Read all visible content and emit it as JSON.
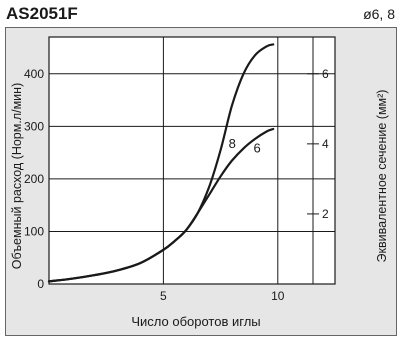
{
  "header": {
    "title": "AS2051F",
    "subtitle": "ø6, 8"
  },
  "chart_data": {
    "type": "line",
    "xlabel": "Число оборотов иглы",
    "ylabel": "Объемный расход (Норм.л/мин)",
    "y2label": "Эквивалентное сечение (мм²)",
    "xlim": [
      0,
      12.5
    ],
    "ylim": [
      0,
      470
    ],
    "y2lim": [
      0,
      7.05
    ],
    "xticks": [
      5,
      10
    ],
    "yticks": [
      0,
      100,
      200,
      300,
      400
    ],
    "y2ticks": [
      2,
      4,
      6
    ],
    "xticklabels": [
      "5",
      "10"
    ],
    "yticklabels": [
      "0",
      "100",
      "200",
      "300",
      "400"
    ],
    "y2ticklabels": [
      "2",
      "4",
      "6"
    ],
    "grid": true,
    "series": [
      {
        "name": "8",
        "x": [
          0,
          1,
          2,
          3,
          4,
          5,
          5.5,
          6,
          6.5,
          7,
          7.5,
          8,
          8.5,
          9,
          9.5,
          9.8
        ],
        "y": [
          5,
          10,
          17,
          26,
          40,
          65,
          82,
          103,
          135,
          185,
          255,
          340,
          400,
          435,
          452,
          456
        ]
      },
      {
        "name": "6",
        "x": [
          0,
          1,
          2,
          3,
          4,
          5,
          5.5,
          6,
          6.5,
          7,
          7.5,
          8,
          8.5,
          9,
          9.5,
          9.8
        ],
        "y": [
          5,
          10,
          17,
          26,
          40,
          65,
          82,
          103,
          135,
          170,
          205,
          235,
          258,
          276,
          290,
          295
        ]
      }
    ]
  }
}
